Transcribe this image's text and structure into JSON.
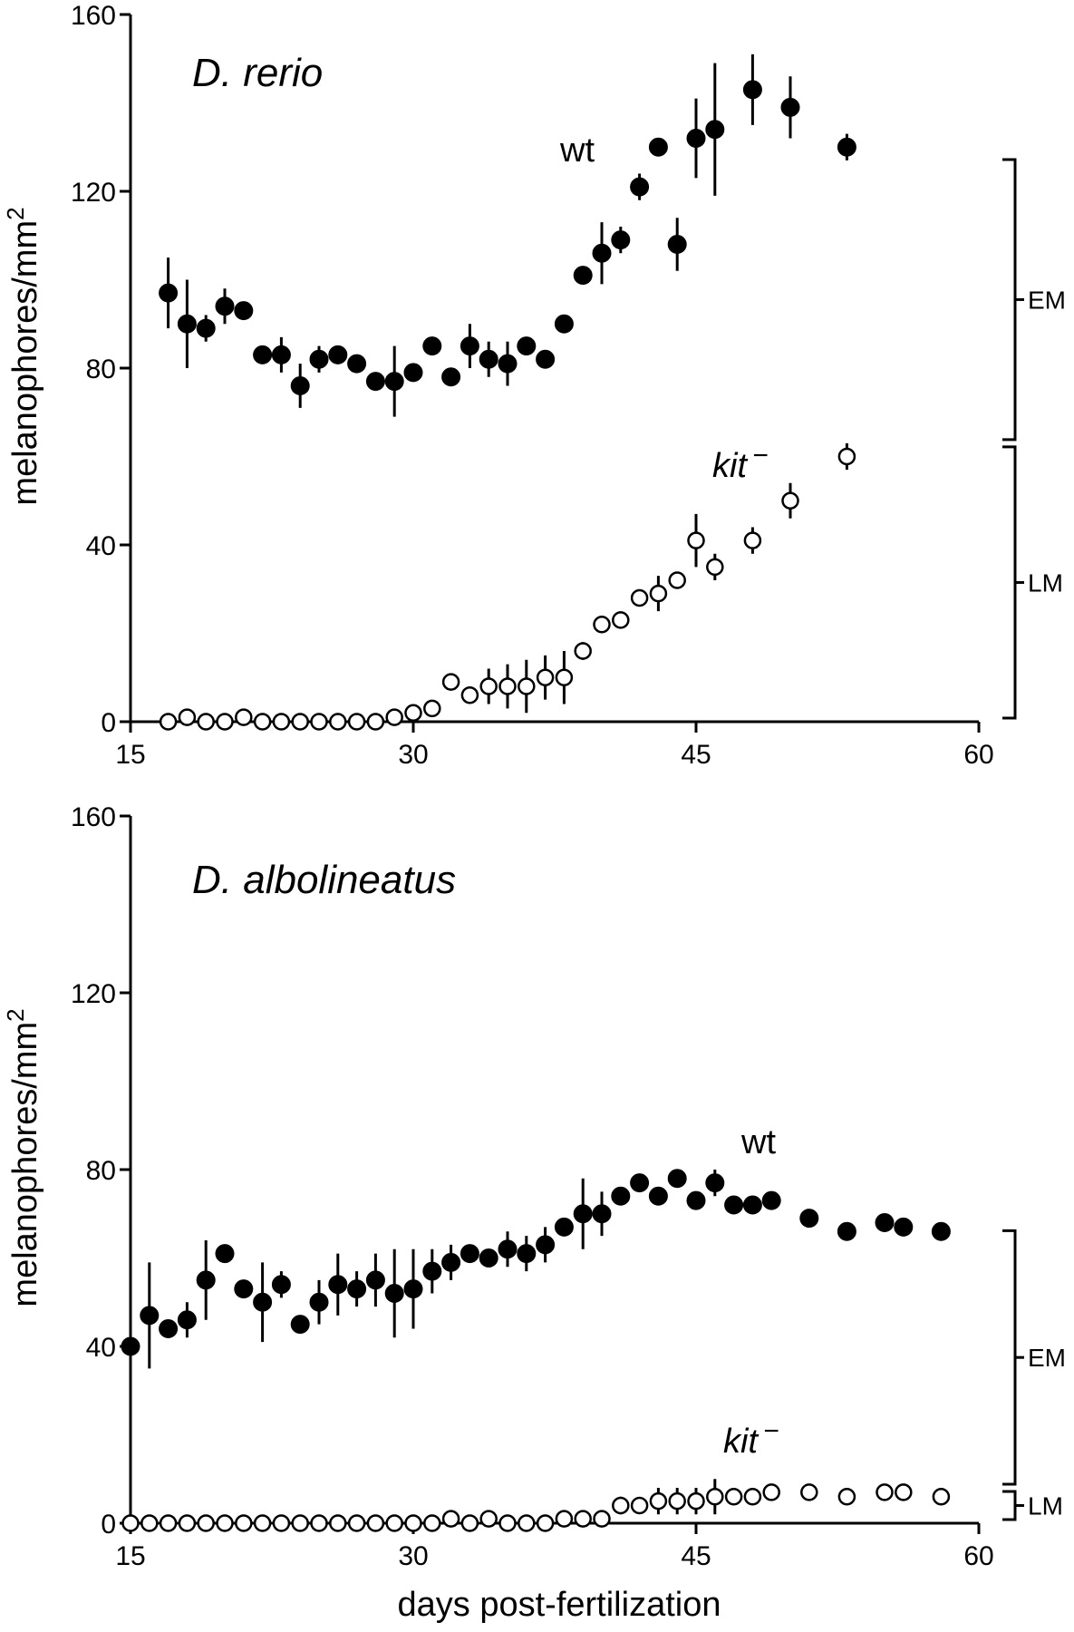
{
  "figure": {
    "x_axis_title": "days post-fertilization"
  },
  "chart_data": [
    {
      "type": "scatter",
      "title": "D. rerio",
      "ylabel": "melanophores/mm",
      "ylabel_superscript": "2",
      "xlim": [
        15,
        60
      ],
      "ylim": [
        0,
        160
      ],
      "xticks": [
        15,
        30,
        45,
        60
      ],
      "yticks": [
        0,
        40,
        80,
        120,
        160
      ],
      "grid": false,
      "series": [
        {
          "name": "wt",
          "marker": "filled-circle",
          "points": [
            {
              "x": 17,
              "y": 97,
              "err": 8
            },
            {
              "x": 18,
              "y": 90,
              "err": 10
            },
            {
              "x": 19,
              "y": 89,
              "err": 3
            },
            {
              "x": 20,
              "y": 94,
              "err": 4
            },
            {
              "x": 21,
              "y": 93,
              "err": 0
            },
            {
              "x": 22,
              "y": 83,
              "err": 0
            },
            {
              "x": 23,
              "y": 83,
              "err": 4
            },
            {
              "x": 24,
              "y": 76,
              "err": 5
            },
            {
              "x": 25,
              "y": 82,
              "err": 3
            },
            {
              "x": 26,
              "y": 83,
              "err": 2
            },
            {
              "x": 27,
              "y": 81,
              "err": 2
            },
            {
              "x": 28,
              "y": 77,
              "err": 0
            },
            {
              "x": 29,
              "y": 77,
              "err": 8
            },
            {
              "x": 30,
              "y": 79,
              "err": 0
            },
            {
              "x": 31,
              "y": 85,
              "err": 0
            },
            {
              "x": 32,
              "y": 78,
              "err": 0
            },
            {
              "x": 33,
              "y": 85,
              "err": 5
            },
            {
              "x": 34,
              "y": 82,
              "err": 4
            },
            {
              "x": 35,
              "y": 81,
              "err": 5
            },
            {
              "x": 36,
              "y": 85,
              "err": 0
            },
            {
              "x": 37,
              "y": 82,
              "err": 0
            },
            {
              "x": 38,
              "y": 90,
              "err": 0
            },
            {
              "x": 39,
              "y": 101,
              "err": 0
            },
            {
              "x": 40,
              "y": 106,
              "err": 7
            },
            {
              "x": 41,
              "y": 109,
              "err": 3
            },
            {
              "x": 42,
              "y": 121,
              "err": 3
            },
            {
              "x": 43,
              "y": 130,
              "err": 0
            },
            {
              "x": 44,
              "y": 108,
              "err": 6
            },
            {
              "x": 45,
              "y": 132,
              "err": 9
            },
            {
              "x": 46,
              "y": 134,
              "err": 15
            },
            {
              "x": 48,
              "y": 143,
              "err": 8
            },
            {
              "x": 50,
              "y": 139,
              "err": 7
            },
            {
              "x": 53,
              "y": 130,
              "err": 3
            }
          ]
        },
        {
          "name": "kit",
          "name_superscript": "−",
          "marker": "open-circle",
          "points": [
            {
              "x": 17,
              "y": 0,
              "err": 0
            },
            {
              "x": 18,
              "y": 1,
              "err": 0
            },
            {
              "x": 19,
              "y": 0,
              "err": 0
            },
            {
              "x": 20,
              "y": 0,
              "err": 0
            },
            {
              "x": 21,
              "y": 1,
              "err": 0
            },
            {
              "x": 22,
              "y": 0,
              "err": 0
            },
            {
              "x": 23,
              "y": 0,
              "err": 0
            },
            {
              "x": 24,
              "y": 0,
              "err": 0
            },
            {
              "x": 25,
              "y": 0,
              "err": 0
            },
            {
              "x": 26,
              "y": 0,
              "err": 0
            },
            {
              "x": 27,
              "y": 0,
              "err": 0
            },
            {
              "x": 28,
              "y": 0,
              "err": 0
            },
            {
              "x": 29,
              "y": 1,
              "err": 0
            },
            {
              "x": 30,
              "y": 2,
              "err": 0
            },
            {
              "x": 31,
              "y": 3,
              "err": 0
            },
            {
              "x": 32,
              "y": 9,
              "err": 0
            },
            {
              "x": 33,
              "y": 6,
              "err": 0
            },
            {
              "x": 34,
              "y": 8,
              "err": 4
            },
            {
              "x": 35,
              "y": 8,
              "err": 5
            },
            {
              "x": 36,
              "y": 8,
              "err": 6
            },
            {
              "x": 37,
              "y": 10,
              "err": 5
            },
            {
              "x": 38,
              "y": 10,
              "err": 6
            },
            {
              "x": 39,
              "y": 16,
              "err": 2
            },
            {
              "x": 40,
              "y": 22,
              "err": 0
            },
            {
              "x": 41,
              "y": 23,
              "err": 0
            },
            {
              "x": 42,
              "y": 28,
              "err": 0
            },
            {
              "x": 43,
              "y": 29,
              "err": 4
            },
            {
              "x": 44,
              "y": 32,
              "err": 0
            },
            {
              "x": 45,
              "y": 41,
              "err": 6
            },
            {
              "x": 46,
              "y": 35,
              "err": 3
            },
            {
              "x": 48,
              "y": 41,
              "err": 3
            },
            {
              "x": 50,
              "y": 50,
              "err": 4
            },
            {
              "x": 53,
              "y": 60,
              "err": 3
            }
          ]
        }
      ],
      "brackets": [
        {
          "label": "EM",
          "from": 63,
          "to": 128
        },
        {
          "label": "LM",
          "from": 0,
          "to": 63
        }
      ]
    },
    {
      "type": "scatter",
      "title": "D. albolineatus",
      "ylabel": "melanophores/mm",
      "ylabel_superscript": "2",
      "xlim": [
        15,
        60
      ],
      "ylim": [
        0,
        160
      ],
      "xticks": [
        15,
        30,
        45,
        60
      ],
      "yticks": [
        0,
        40,
        80,
        120,
        160
      ],
      "grid": false,
      "series": [
        {
          "name": "wt",
          "marker": "filled-circle",
          "points": [
            {
              "x": 15,
              "y": 40,
              "err": 0
            },
            {
              "x": 16,
              "y": 47,
              "err": 12
            },
            {
              "x": 17,
              "y": 44,
              "err": 2
            },
            {
              "x": 18,
              "y": 46,
              "err": 4
            },
            {
              "x": 19,
              "y": 55,
              "err": 9
            },
            {
              "x": 20,
              "y": 61,
              "err": 2
            },
            {
              "x": 21,
              "y": 53,
              "err": 0
            },
            {
              "x": 22,
              "y": 50,
              "err": 9
            },
            {
              "x": 23,
              "y": 54,
              "err": 3
            },
            {
              "x": 24,
              "y": 45,
              "err": 0
            },
            {
              "x": 25,
              "y": 50,
              "err": 5
            },
            {
              "x": 26,
              "y": 54,
              "err": 7
            },
            {
              "x": 27,
              "y": 53,
              "err": 4
            },
            {
              "x": 28,
              "y": 55,
              "err": 6
            },
            {
              "x": 29,
              "y": 52,
              "err": 10
            },
            {
              "x": 30,
              "y": 53,
              "err": 9
            },
            {
              "x": 31,
              "y": 57,
              "err": 5
            },
            {
              "x": 32,
              "y": 59,
              "err": 4
            },
            {
              "x": 33,
              "y": 61,
              "err": 0
            },
            {
              "x": 34,
              "y": 60,
              "err": 0
            },
            {
              "x": 35,
              "y": 62,
              "err": 4
            },
            {
              "x": 36,
              "y": 61,
              "err": 4
            },
            {
              "x": 37,
              "y": 63,
              "err": 4
            },
            {
              "x": 38,
              "y": 67,
              "err": 0
            },
            {
              "x": 39,
              "y": 70,
              "err": 8
            },
            {
              "x": 40,
              "y": 70,
              "err": 5
            },
            {
              "x": 41,
              "y": 74,
              "err": 2
            },
            {
              "x": 42,
              "y": 77,
              "err": 0
            },
            {
              "x": 43,
              "y": 74,
              "err": 0
            },
            {
              "x": 44,
              "y": 78,
              "err": 0
            },
            {
              "x": 45,
              "y": 73,
              "err": 0
            },
            {
              "x": 46,
              "y": 77,
              "err": 3
            },
            {
              "x": 47,
              "y": 72,
              "err": 0
            },
            {
              "x": 48,
              "y": 72,
              "err": 0
            },
            {
              "x": 49,
              "y": 73,
              "err": 0
            },
            {
              "x": 51,
              "y": 69,
              "err": 0
            },
            {
              "x": 53,
              "y": 66,
              "err": 0
            },
            {
              "x": 55,
              "y": 68,
              "err": 0
            },
            {
              "x": 56,
              "y": 67,
              "err": 0
            },
            {
              "x": 58,
              "y": 66,
              "err": 2
            }
          ]
        },
        {
          "name": "kit",
          "name_superscript": "−",
          "marker": "open-circle",
          "points": [
            {
              "x": 15,
              "y": 0,
              "err": 0
            },
            {
              "x": 16,
              "y": 0,
              "err": 0
            },
            {
              "x": 17,
              "y": 0,
              "err": 0
            },
            {
              "x": 18,
              "y": 0,
              "err": 0
            },
            {
              "x": 19,
              "y": 0,
              "err": 0
            },
            {
              "x": 20,
              "y": 0,
              "err": 0
            },
            {
              "x": 21,
              "y": 0,
              "err": 0
            },
            {
              "x": 22,
              "y": 0,
              "err": 0
            },
            {
              "x": 23,
              "y": 0,
              "err": 0
            },
            {
              "x": 24,
              "y": 0,
              "err": 0
            },
            {
              "x": 25,
              "y": 0,
              "err": 0
            },
            {
              "x": 26,
              "y": 0,
              "err": 0
            },
            {
              "x": 27,
              "y": 0,
              "err": 0
            },
            {
              "x": 28,
              "y": 0,
              "err": 0
            },
            {
              "x": 29,
              "y": 0,
              "err": 0
            },
            {
              "x": 30,
              "y": 0,
              "err": 0
            },
            {
              "x": 31,
              "y": 0,
              "err": 0
            },
            {
              "x": 32,
              "y": 1,
              "err": 0
            },
            {
              "x": 33,
              "y": 0,
              "err": 0
            },
            {
              "x": 34,
              "y": 1,
              "err": 0
            },
            {
              "x": 35,
              "y": 0,
              "err": 0
            },
            {
              "x": 36,
              "y": 0,
              "err": 0
            },
            {
              "x": 37,
              "y": 0,
              "err": 0
            },
            {
              "x": 38,
              "y": 1,
              "err": 0
            },
            {
              "x": 39,
              "y": 1,
              "err": 0
            },
            {
              "x": 40,
              "y": 1,
              "err": 0
            },
            {
              "x": 41,
              "y": 4,
              "err": 2
            },
            {
              "x": 42,
              "y": 4,
              "err": 0
            },
            {
              "x": 43,
              "y": 5,
              "err": 3
            },
            {
              "x": 44,
              "y": 5,
              "err": 3
            },
            {
              "x": 45,
              "y": 5,
              "err": 3
            },
            {
              "x": 46,
              "y": 6,
              "err": 4
            },
            {
              "x": 47,
              "y": 6,
              "err": 0
            },
            {
              "x": 48,
              "y": 6,
              "err": 0
            },
            {
              "x": 49,
              "y": 7,
              "err": 0
            },
            {
              "x": 51,
              "y": 7,
              "err": 0
            },
            {
              "x": 53,
              "y": 6,
              "err": 0
            },
            {
              "x": 55,
              "y": 7,
              "err": 0
            },
            {
              "x": 56,
              "y": 7,
              "err": 0
            },
            {
              "x": 58,
              "y": 6,
              "err": 0
            }
          ]
        }
      ],
      "brackets": [
        {
          "label": "EM",
          "from": 8,
          "to": 67
        },
        {
          "label": "LM",
          "from": 0,
          "to": 8
        }
      ]
    }
  ]
}
